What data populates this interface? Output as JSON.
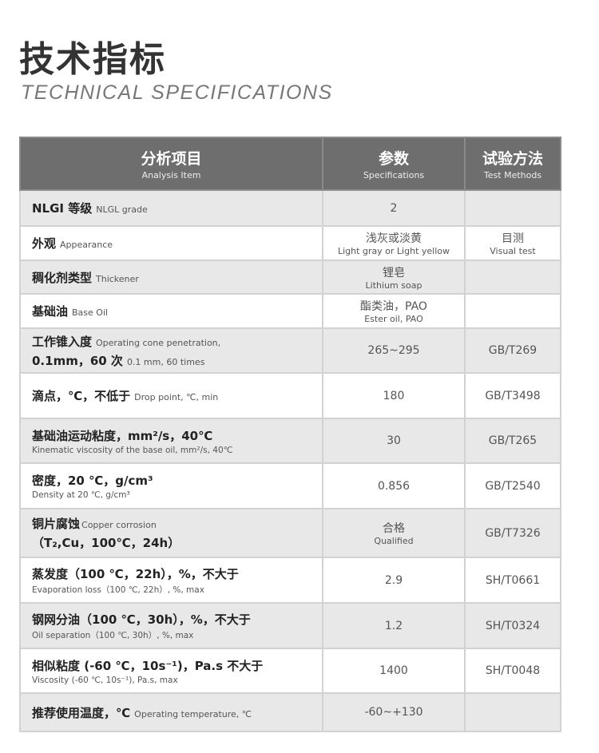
{
  "title": "技术指标",
  "subtitle": "TECHNICAL SPECIFICATIONS",
  "header": {
    "item_zh": "分析项目",
    "item_en": "Analysis Item",
    "spec_zh": "参数",
    "spec_en": "Specifications",
    "method_zh": "试验方法",
    "method_en": "Test Methods"
  },
  "rows": [
    {
      "zh": "NLGI 等级",
      "en": "NLGL grade",
      "spec": "2",
      "spec_en": "",
      "method": "",
      "method_en": ""
    },
    {
      "zh": "外观",
      "en": "Appearance",
      "spec": "浅灰或淡黄",
      "spec_en": "Light gray or Light yellow",
      "method": "目测",
      "method_en": "Visual test"
    },
    {
      "zh": "稠化剂类型",
      "en": "Thickener",
      "spec": "锂皂",
      "spec_en": "Lithium soap",
      "method": "",
      "method_en": ""
    },
    {
      "zh": "基础油",
      "en": "Base Oil",
      "spec": "酯类油，PAO",
      "spec_en": "Ester oil, PAO",
      "method": "",
      "method_en": ""
    },
    {
      "zh": "工作锥入度",
      "en": "Operating cone penetration,",
      "zh2": "0.1mm，60 次",
      "en2": "0.1 mm, 60 times",
      "spec": "265~295",
      "method": "GB/T269"
    },
    {
      "zh": "滴点，℃，不低于",
      "en": "Drop point, ℃, min",
      "spec": "180",
      "method": "GB/T3498"
    },
    {
      "zh": "基础油运动粘度，mm²/s，40℃",
      "en": "Kinematic viscosity of the base oil, mm²/s, 40℃",
      "spec": "30",
      "method": "GB/T265"
    },
    {
      "zh": "密度，20 ℃，g/cm³",
      "en": "Density at 20 ℃, g/cm³",
      "spec": "0.856",
      "method": "GB/T2540"
    },
    {
      "zh": "铜片腐蚀",
      "en": "Copper corrosion",
      "zh2": "（T₂,Cu，100℃，24h）",
      "spec": "合格",
      "spec_en": "Qualified",
      "method": "GB/T7326"
    },
    {
      "zh": "蒸发度（100 ℃，22h），%，不大于",
      "en": "Evaporation loss（100 ℃, 22h）, %, max",
      "spec": "2.9",
      "method": "SH/T0661"
    },
    {
      "zh": "钢网分油（100 ℃，30h），%，不大于",
      "en": "Oil separation（100 ℃, 30h）, %, max",
      "spec": "1.2",
      "method": "SH/T0324"
    },
    {
      "zh": "相似粘度 (-60 ℃，10s⁻¹)，Pa.s 不大于",
      "en": "Viscosity (-60 ℃, 10s⁻¹), Pa.s, max",
      "spec": "1400",
      "method": "SH/T0048"
    },
    {
      "zh": "推荐使用温度，℃",
      "en": "Operating temperature, ℃",
      "spec": "-60~+130",
      "method": ""
    }
  ]
}
